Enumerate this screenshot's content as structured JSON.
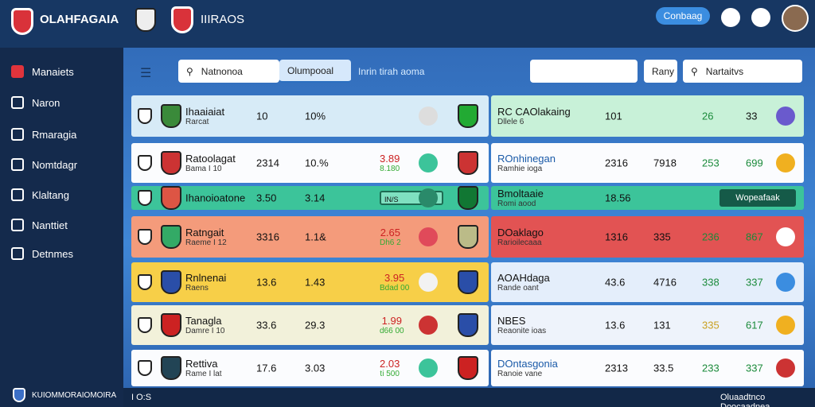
{
  "header": {
    "brand": "OLAHFAGAIA",
    "nav": "IIIRAOS",
    "button": "Conbaag"
  },
  "sidebar": {
    "items": [
      "Manaiets",
      "Naron",
      "Rmaragia",
      "Nomtdagr",
      "Klaltang",
      "Nanttiet",
      "Detnmes"
    ],
    "footer": "KUIOMMORAIOMOIRA"
  },
  "toolbar": {
    "search": "Natnonoa",
    "tab": "Olumpooal",
    "hint": "Inrin tirah aoma",
    "rank": "Rany",
    "filter": "Nartaitvs"
  },
  "table_left": {
    "rows": [
      {
        "name": "Ihaaiaiat",
        "sub": "Rarcat",
        "a": "10",
        "b": "10%"
      },
      {
        "name": "Ratoolagat",
        "sub": "Bama I 10",
        "a": "2314",
        "b": "10.%",
        "odds": "3.89",
        "odds_sub": "8.180"
      },
      {
        "name": "Ihanoioatone",
        "a": "3.50",
        "b": "3.14",
        "bar": "IN/S"
      },
      {
        "name": "Ratngait",
        "sub": "Raeme I 12",
        "a": "3316",
        "b": "1.1&",
        "odds": "2.65",
        "odds_sub": "Dh6 2"
      },
      {
        "name": "Rnlnenai",
        "sub": "Raens",
        "a": "13.6",
        "b": "1.43",
        "odds": "3.95",
        "odds_sub": "Bdad 00"
      },
      {
        "name": "Tanagla",
        "sub": "Damre I 10",
        "a": "33.6",
        "b": "29.3",
        "odds": "1.99",
        "odds_sub": "d66 00"
      },
      {
        "name": "Rettiva",
        "sub": "Rame I lat",
        "a": "17.6",
        "b": "3.03",
        "odds": "2.03",
        "odds_sub": "ti 500"
      }
    ]
  },
  "table_right": {
    "rows": [
      {
        "name": "RC CAOlakaing",
        "sub": "Dllele 6",
        "a": "101",
        "c": "26",
        "d": "33"
      },
      {
        "name": "ROnhinegan",
        "sub": "Ramhie ioga",
        "a": "2316",
        "b": "7918",
        "c": "253",
        "d": "699"
      },
      {
        "name": "Bmoltaaie",
        "sub": "Romi aood",
        "a": "18.56",
        "button": "Wopeafaak"
      },
      {
        "name": "DOaklago",
        "sub": "Rarioilecaaa",
        "a": "1316",
        "b": "335",
        "c": "236",
        "d": "867"
      },
      {
        "name": "AOAHdaga",
        "sub": "Rande oant",
        "a": "43.6",
        "b": "4716",
        "c": "338",
        "d": "337"
      },
      {
        "name": "NBES",
        "sub": "Reaonite ioas",
        "a": "13.6",
        "b": "131",
        "c": "335",
        "d": "617"
      },
      {
        "name": "DOntasgonia",
        "sub": "Ranoie vane",
        "a": "2313",
        "b": "33.5",
        "c": "233",
        "d": "337"
      }
    ]
  },
  "status": {
    "left": "I O:S",
    "right": "Oluaadtnco Doocaadnea"
  }
}
